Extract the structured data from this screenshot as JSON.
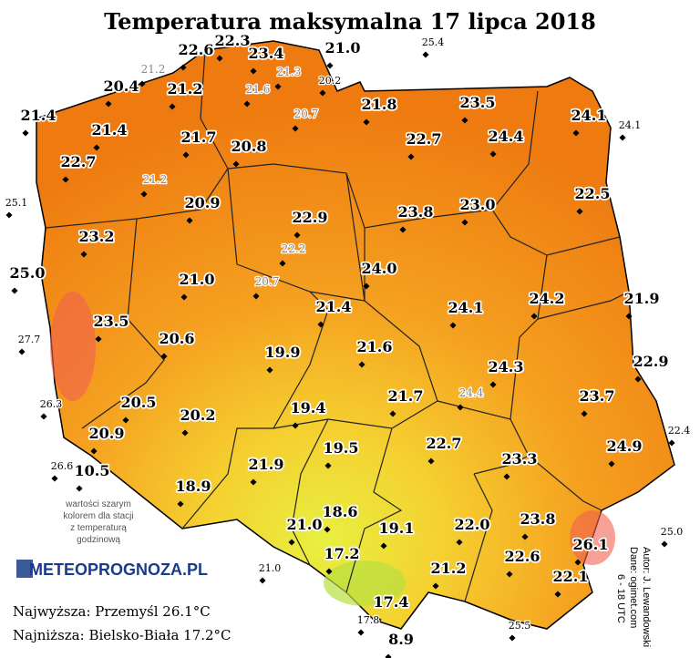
{
  "title": "Temperatura maksymalna 17 lipca 2018",
  "stations": [
    "22.3",
    "22.6",
    "23.4",
    "21.0",
    "20.4",
    "21.2",
    "21.4",
    "21.8",
    "23.5",
    "24.1",
    "21.4",
    "21.7",
    "20.8",
    "22.7",
    "24.4",
    "22.7",
    "22.5",
    "20.9",
    "22.9",
    "23.8",
    "23.0",
    "23.2",
    "25.0",
    "24.0",
    "21.0",
    "24.2",
    "21.9",
    "24.1",
    "21.4",
    "23.5",
    "20.6",
    "19.9",
    "21.6",
    "22.9",
    "24.3",
    "23.7",
    "21.7",
    "20.5",
    "19.4",
    "20.2",
    "20.9",
    "22.7",
    "24.9",
    "19.5",
    "23.3",
    "10.5",
    "21.9",
    "18.9",
    "18.6",
    "23.8",
    "19.1",
    "21.0",
    "22.0",
    "26.1",
    "17.2",
    "22.6",
    "21.2",
    "22.1",
    "17.4",
    "8.9"
  ],
  "hourly_stations": [
    "21.2",
    "21.3",
    "21.6",
    "20.7",
    "21.2",
    "22.2",
    "20.7",
    "24.4"
  ],
  "other_stations": [
    "25.4",
    "20.2",
    "24.1",
    "25.1",
    "27.7",
    "26.3",
    "26.6",
    "22.4",
    "25.0",
    "21.0",
    "17.8",
    "25.5"
  ],
  "note": [
    "wartości szarym",
    "kolorem dla stacji",
    "z temperaturą",
    "godzinową"
  ],
  "logo": "METEOPROGNOZA.PL",
  "max": "Najwyższa: Przemyśl 26.1°C",
  "min": "Najniższa: Bielsko-Biała 17.2°C",
  "credits": [
    "Autor: J. Lewandowski",
    "Dane: ogimet.com",
    "6 - 18 UTC"
  ]
}
